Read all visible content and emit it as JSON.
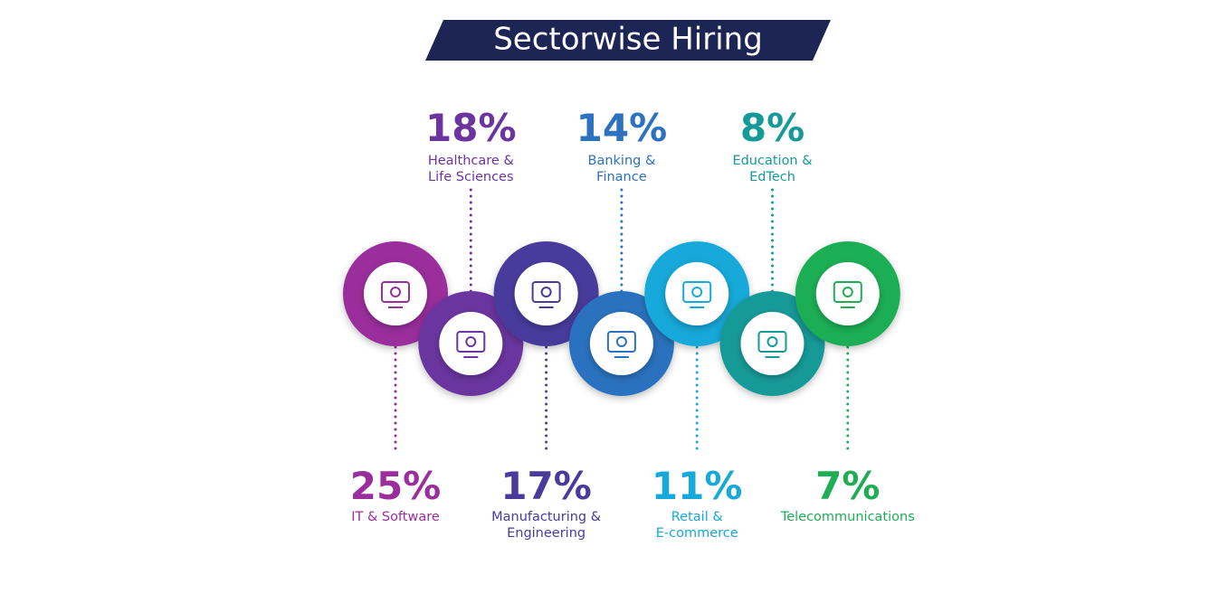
{
  "title": "Sectorwise Hiring",
  "sectors": [
    {
      "percent": "25%",
      "label_lines": [
        "IT & Software"
      ],
      "color": "#9a2e9c"
    },
    {
      "percent": "18%",
      "label_lines": [
        "Healthcare &",
        "Life Sciences"
      ],
      "color": "#6b349f"
    },
    {
      "percent": "17%",
      "label_lines": [
        "Manufacturing &",
        "Engineering"
      ],
      "color": "#4a3a9c"
    },
    {
      "percent": "14%",
      "label_lines": [
        "Banking &",
        "Finance"
      ],
      "color": "#2c72bf"
    },
    {
      "percent": "11%",
      "label_lines": [
        "Retail &",
        "E-commerce"
      ],
      "color": "#17a9d9"
    },
    {
      "percent": "8%",
      "label_lines": [
        "Education &",
        "EdTech"
      ],
      "color": "#159a98"
    },
    {
      "percent": "7%",
      "label_lines": [
        "Telecommunications"
      ],
      "color": "#1fae55"
    }
  ]
}
